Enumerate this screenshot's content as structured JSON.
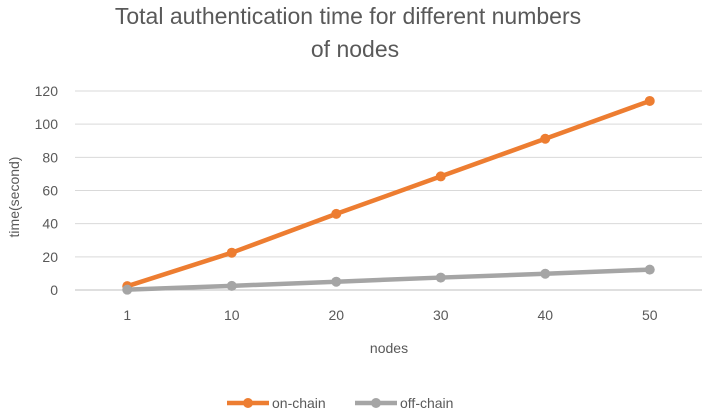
{
  "chart_data": {
    "type": "line",
    "title_lines": [
      "Total authentication time for different numbers",
      "of nodes"
    ],
    "xlabel": "nodes",
    "ylabel": "time(second)",
    "categories": [
      "1",
      "10",
      "20",
      "30",
      "40",
      "50"
    ],
    "ylim": [
      0,
      120
    ],
    "yticks": [
      0,
      20,
      40,
      60,
      80,
      100,
      120
    ],
    "grid": true,
    "legend_position": "bottom",
    "series": [
      {
        "name": "on-chain",
        "color": "#ED7D31",
        "values": [
          2.3,
          22.5,
          45.9,
          68.5,
          91.2,
          114
        ]
      },
      {
        "name": "off-chain",
        "color": "#A5A5A5",
        "values": [
          0.2,
          2.5,
          5.0,
          7.5,
          9.8,
          12.3
        ]
      }
    ]
  }
}
